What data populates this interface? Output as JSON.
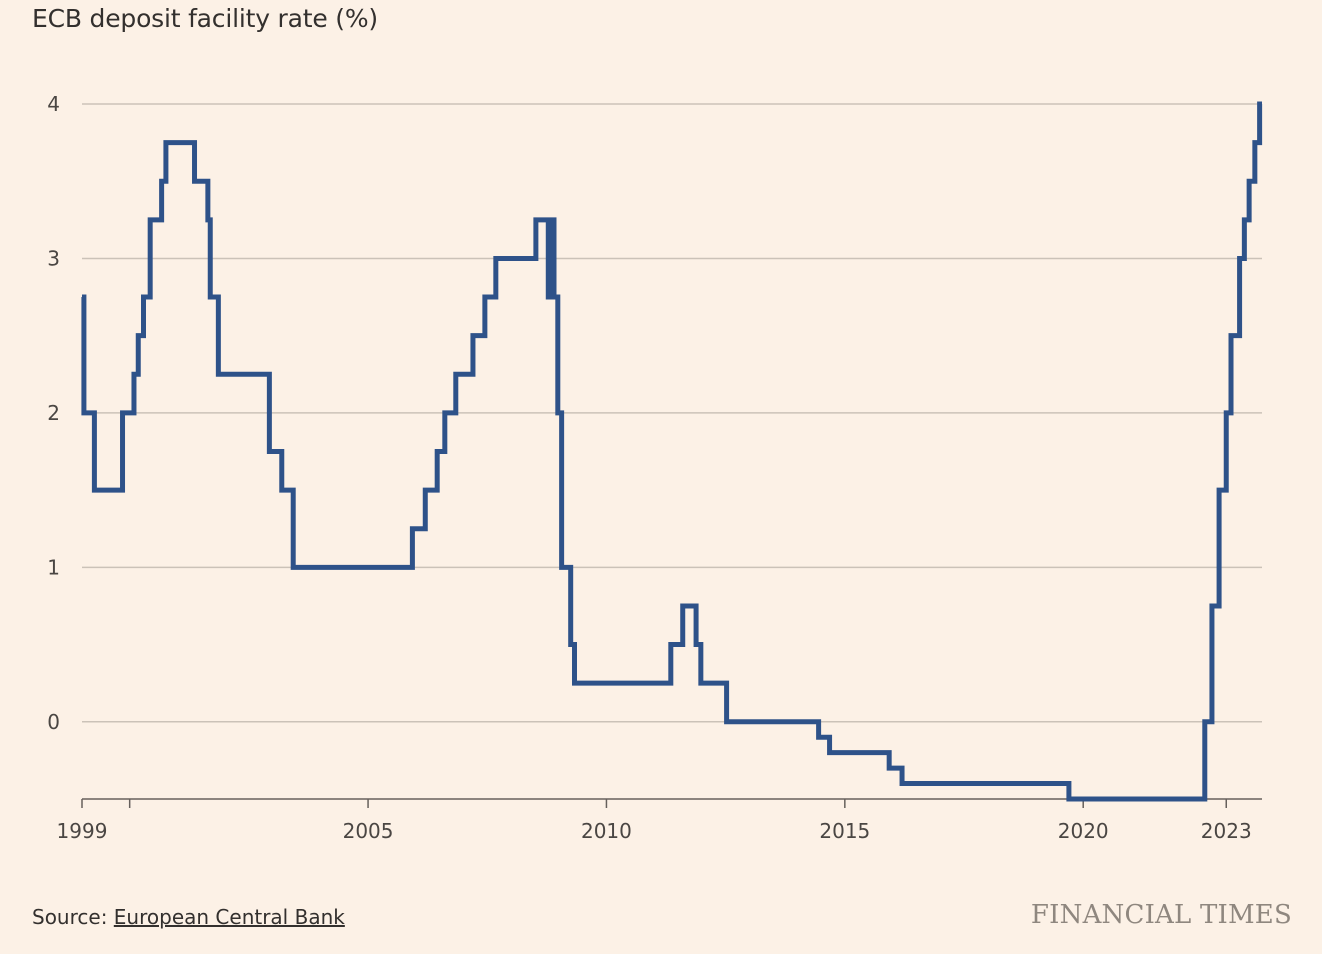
{
  "chart_data": {
    "type": "line",
    "step": true,
    "title": "ECB deposit facility rate (%)",
    "xlabel": "",
    "ylabel": "",
    "ylim": [
      -0.5,
      4
    ],
    "xlim": [
      1999.0,
      2023.75
    ],
    "yticks": [
      0,
      1,
      2,
      3,
      4
    ],
    "xtick_labels": [
      {
        "value": 1999,
        "label": "1999"
      },
      {
        "value": 2005,
        "label": "2005"
      },
      {
        "value": 2010,
        "label": "2010"
      },
      {
        "value": 2015,
        "label": "2015"
      },
      {
        "value": 2020,
        "label": "2020"
      },
      {
        "value": 2023,
        "label": "2023"
      }
    ],
    "minor_xticks": [
      2000
    ],
    "line_color": "#2e5289",
    "series": [
      {
        "name": "ECB deposit facility rate",
        "points": [
          [
            1999.0,
            2.75
          ],
          [
            1999.04,
            2.0
          ],
          [
            1999.26,
            1.5
          ],
          [
            1999.85,
            2.0
          ],
          [
            2000.09,
            2.25
          ],
          [
            2000.18,
            2.5
          ],
          [
            2000.29,
            2.75
          ],
          [
            2000.43,
            3.25
          ],
          [
            2000.67,
            3.5
          ],
          [
            2000.76,
            3.75
          ],
          [
            2001.36,
            3.5
          ],
          [
            2001.64,
            3.25
          ],
          [
            2001.69,
            2.75
          ],
          [
            2001.86,
            2.25
          ],
          [
            2002.93,
            1.75
          ],
          [
            2003.19,
            1.5
          ],
          [
            2003.43,
            1.0
          ],
          [
            2005.93,
            1.25
          ],
          [
            2006.2,
            1.5
          ],
          [
            2006.45,
            1.75
          ],
          [
            2006.61,
            2.0
          ],
          [
            2006.84,
            2.25
          ],
          [
            2007.2,
            2.5
          ],
          [
            2007.45,
            2.75
          ],
          [
            2007.68,
            3.0
          ],
          [
            2008.52,
            3.25
          ],
          [
            2008.78,
            2.75
          ],
          [
            2008.87,
            3.25
          ],
          [
            2008.9,
            2.75
          ],
          [
            2008.98,
            2.0
          ],
          [
            2009.06,
            1.0
          ],
          [
            2009.25,
            0.5
          ],
          [
            2009.33,
            0.25
          ],
          [
            2011.35,
            0.5
          ],
          [
            2011.6,
            0.75
          ],
          [
            2011.88,
            0.5
          ],
          [
            2011.98,
            0.25
          ],
          [
            2012.52,
            0.0
          ],
          [
            2014.45,
            -0.1
          ],
          [
            2014.68,
            -0.2
          ],
          [
            2015.93,
            -0.3
          ],
          [
            2016.2,
            -0.4
          ],
          [
            2019.7,
            -0.5
          ],
          [
            2022.55,
            0.0
          ],
          [
            2022.7,
            0.75
          ],
          [
            2022.85,
            1.5
          ],
          [
            2023.0,
            2.0
          ],
          [
            2023.1,
            2.5
          ],
          [
            2023.28,
            3.0
          ],
          [
            2023.38,
            3.25
          ],
          [
            2023.48,
            3.5
          ],
          [
            2023.6,
            3.75
          ],
          [
            2023.7,
            4.0
          ]
        ]
      }
    ],
    "source_prefix": "Source: ",
    "source_link": "European Central Bank",
    "brand": "FINANCIAL TIMES"
  }
}
